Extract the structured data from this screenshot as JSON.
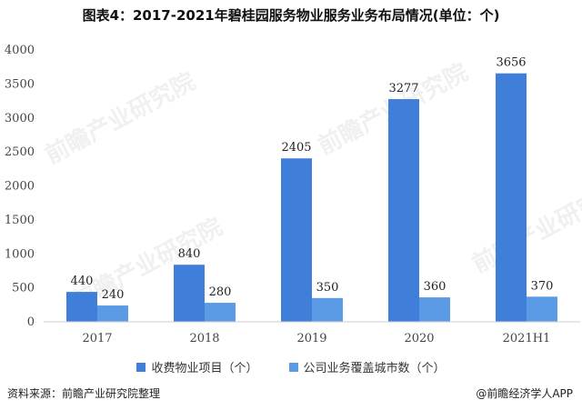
{
  "chart_data": {
    "type": "bar",
    "title": "图表4：2017-2021年碧桂园服务物业服务业务布局情况(单位：个)",
    "categories": [
      "2017",
      "2018",
      "2019",
      "2020",
      "2021H1"
    ],
    "series": [
      {
        "name": "收费物业项目（个）",
        "color": "#3f7fd9",
        "values": [
          440,
          840,
          2405,
          3277,
          3656
        ]
      },
      {
        "name": "公司业务覆盖城市数（个）",
        "color": "#5b9be6",
        "values": [
          240,
          280,
          350,
          360,
          370
        ]
      }
    ],
    "yticks": [
      0,
      500,
      1000,
      1500,
      2000,
      2500,
      3000,
      3500,
      4000
    ],
    "ylim": [
      0,
      4000
    ],
    "grid": false,
    "legend_position": "bottom"
  },
  "footer": {
    "source": "资料来源：前瞻产业研究院整理",
    "brand": "@前瞻经济学人APP"
  },
  "watermark": "前瞻产业研究院"
}
